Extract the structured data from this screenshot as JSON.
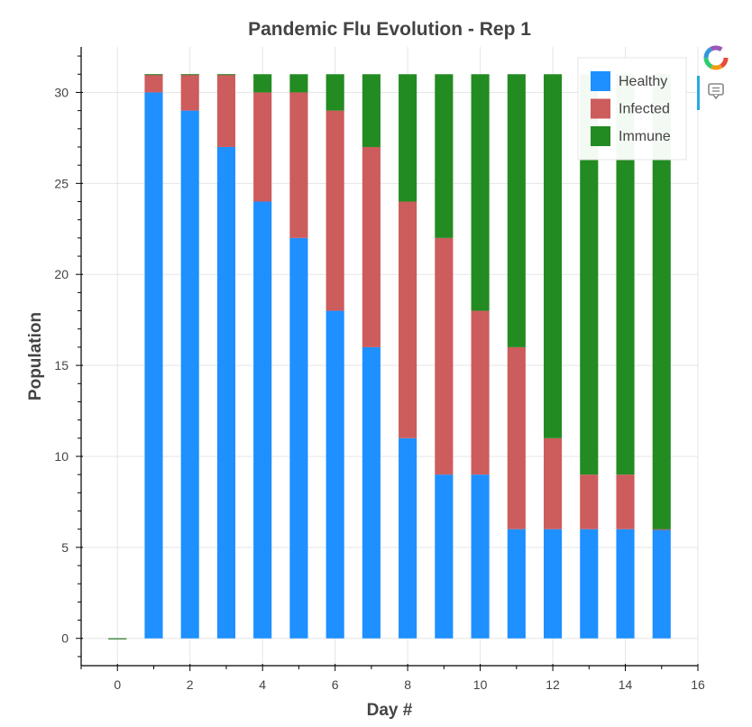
{
  "chart_data": {
    "type": "bar",
    "stacked": true,
    "title": "Pandemic Flu Evolution - Rep 1",
    "xlabel": "Day #",
    "ylabel": "Population",
    "xlim": [
      -1,
      16
    ],
    "ylim": [
      -1.5,
      32.5
    ],
    "x_major_ticks": [
      0,
      2,
      4,
      6,
      8,
      10,
      12,
      14,
      16
    ],
    "y_major_ticks": [
      0,
      5,
      10,
      15,
      20,
      25,
      30
    ],
    "grid": true,
    "legend_position": "top-right",
    "x": [
      0,
      1,
      2,
      3,
      4,
      5,
      6,
      7,
      8,
      9,
      10,
      11,
      12,
      13,
      14,
      15
    ],
    "series": [
      {
        "name": "Healthy",
        "color": "#1e90ff",
        "values": [
          0,
          30,
          29,
          27,
          24,
          22,
          18,
          16,
          11,
          9,
          9,
          6,
          6,
          6,
          6,
          6
        ]
      },
      {
        "name": "Infected",
        "color": "#cd5c5c",
        "values": [
          0,
          1,
          2,
          4,
          6,
          8,
          11,
          11,
          13,
          13,
          9,
          10,
          5,
          3,
          3,
          0
        ]
      },
      {
        "name": "Immune",
        "color": "#228b22",
        "values": [
          0,
          0,
          0,
          0,
          1,
          1,
          2,
          4,
          7,
          9,
          13,
          15,
          20,
          22,
          22,
          25
        ]
      }
    ]
  },
  "toolbar": {
    "logo_icon": "bokeh-logo-icon",
    "tool_icon": "hover-tooltip-icon",
    "accent_color": "#26aae1"
  }
}
